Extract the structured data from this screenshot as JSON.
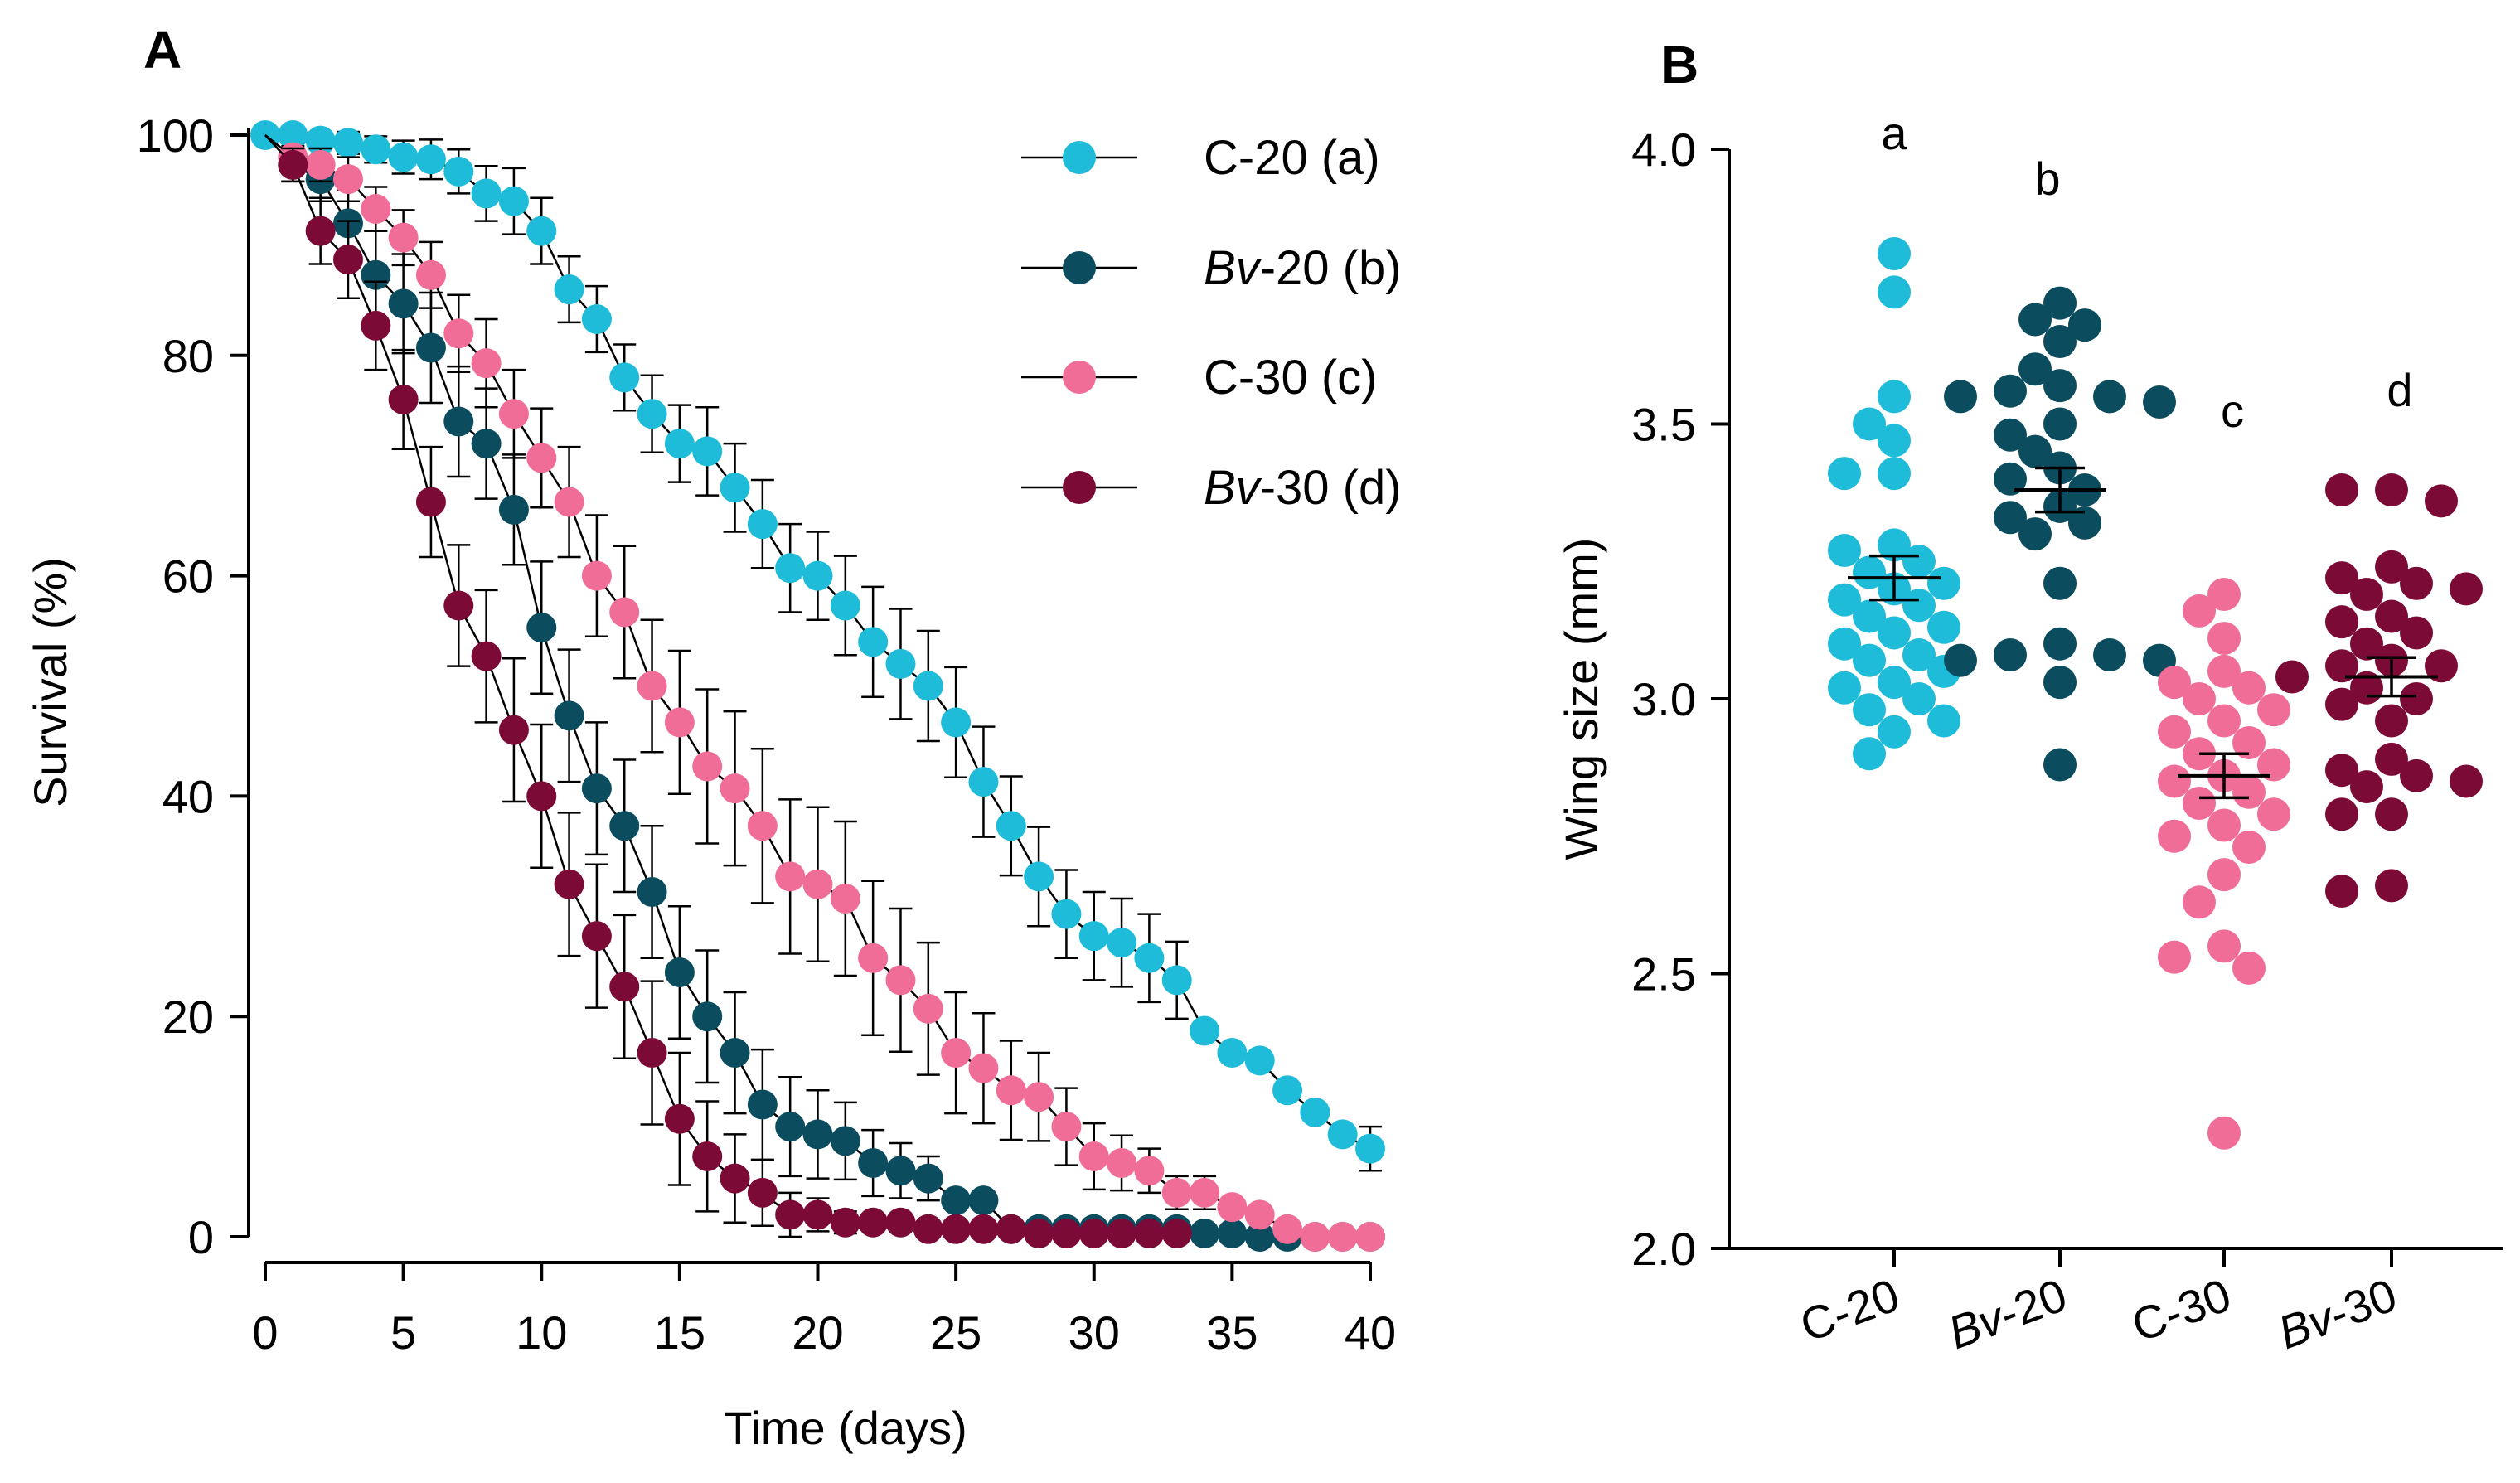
{
  "panel_a": {
    "label": "A",
    "xlabel": "Time (days)",
    "ylabel": "Survival (%)",
    "xticks": [
      "0",
      "5",
      "10",
      "15",
      "20",
      "25",
      "30",
      "35",
      "40"
    ],
    "yticks": [
      "0",
      "20",
      "40",
      "60",
      "80",
      "100"
    ]
  },
  "panel_b": {
    "label": "B",
    "ylabel": "Wing size (mm)",
    "yticks": [
      "2.0",
      "2.5",
      "3.0",
      "3.5",
      "4.0"
    ],
    "categories": [
      {
        "prefix": "C",
        "suffix": "-20"
      },
      {
        "prefix": "Bv",
        "suffix": "-20"
      },
      {
        "prefix": "C",
        "suffix": "-30"
      },
      {
        "prefix": "Bv",
        "suffix": "-30"
      }
    ],
    "letters": [
      "a",
      "b",
      "c",
      "d"
    ]
  },
  "legend": [
    {
      "prefix": "C",
      "rest": "-20 (a)",
      "italic": false
    },
    {
      "prefix": "Bv",
      "rest": "-20 (b)",
      "italic": true
    },
    {
      "prefix": "C",
      "rest": "-30 (c)",
      "italic": false
    },
    {
      "prefix": "Bv",
      "rest": "-30 (d)",
      "italic": true
    }
  ],
  "colors": {
    "C-20": "#1ebcd9",
    "Bv-20": "#0b4d5f",
    "C-30": "#f06d98",
    "Bv-30": "#7c0a37"
  },
  "chart_data": [
    {
      "type": "line",
      "title": "A",
      "xlabel": "Time (days)",
      "ylabel": "Survival (%)",
      "xlim": [
        0,
        40
      ],
      "ylim": [
        0,
        100
      ],
      "x": [
        0,
        1,
        2,
        3,
        4,
        5,
        6,
        7,
        8,
        9,
        10,
        11,
        12,
        13,
        14,
        15,
        16,
        17,
        18,
        19,
        20,
        21,
        22,
        23,
        24,
        25,
        26,
        27,
        28,
        29,
        30,
        31,
        32,
        33,
        34,
        35,
        36,
        37,
        38,
        39,
        40
      ],
      "series": [
        {
          "name": "C-20 (a)",
          "key": "C-20",
          "values": [
            100,
            100,
            99.5,
            99.3,
            98.7,
            98,
            97.8,
            96.7,
            94.7,
            94,
            91.3,
            86,
            83.3,
            78,
            74.7,
            72,
            71.3,
            68,
            64.7,
            60.7,
            60,
            57.3,
            54,
            52,
            50,
            46.7,
            41.3,
            37.3,
            32.7,
            29.3,
            27.3,
            26.7,
            25.3,
            23.3,
            18.7,
            16.7,
            16,
            13.3,
            11.3,
            9.3,
            8
          ],
          "err": [
            0,
            0.5,
            0.8,
            1,
            1.2,
            1.5,
            1.8,
            2,
            2.5,
            3,
            3,
            3,
            3,
            3,
            3.5,
            3.5,
            4,
            4,
            4,
            4,
            4,
            4.5,
            5,
            5,
            5,
            5,
            5,
            4.5,
            4.5,
            4,
            4,
            4,
            4,
            3.5,
            0,
            0,
            0,
            0,
            0,
            0,
            2
          ]
        },
        {
          "name": "Bv-20 (b)",
          "key": "Bv-20",
          "values": [
            null,
            97.3,
            96,
            92,
            87.3,
            84.7,
            80.7,
            74,
            72,
            66,
            55.3,
            47.3,
            40.7,
            37.3,
            31.3,
            24,
            20,
            16.7,
            12,
            10,
            9.3,
            8.7,
            6.7,
            6,
            5.3,
            3.3,
            3.3,
            0.7,
            0.7,
            0.7,
            0.7,
            0.7,
            0.7,
            0.7,
            0.3,
            0.3,
            0,
            0,
            0,
            0,
            0
          ],
          "err": [
            0,
            1.5,
            2,
            3,
            4,
            4.5,
            5,
            5,
            5,
            5,
            6,
            6,
            6,
            6,
            6,
            6,
            6,
            5.5,
            5,
            4.5,
            4,
            3.5,
            3,
            2.5,
            2,
            0,
            0,
            0,
            0,
            0,
            0,
            0,
            0,
            0,
            0,
            0,
            0,
            0,
            0,
            0,
            0
          ]
        },
        {
          "name": "C-30 (c)",
          "key": "C-30",
          "values": [
            null,
            98,
            97.3,
            96,
            93.3,
            90.7,
            87.3,
            82,
            79.3,
            74.7,
            70.7,
            66.7,
            60,
            56.7,
            50,
            46.7,
            42.7,
            40.7,
            37.3,
            32.7,
            32,
            30.7,
            25.3,
            23.3,
            20.7,
            16.7,
            15.3,
            13.3,
            12.7,
            10,
            7.3,
            6.7,
            6,
            4,
            4,
            2.7,
            2,
            0.7,
            0,
            0,
            0
          ],
          "err": [
            0,
            1,
            1.5,
            2,
            2,
            2.5,
            3,
            3.5,
            4,
            4,
            4.5,
            5,
            5.5,
            6,
            6,
            6.5,
            7,
            7,
            7,
            7,
            7,
            7,
            7,
            6.5,
            6,
            5.5,
            5,
            4.5,
            4,
            3.5,
            3,
            2.5,
            2,
            1.5,
            1.5,
            0,
            0,
            0,
            0,
            0,
            0
          ]
        },
        {
          "name": "Bv-30 (d)",
          "key": "Bv-30",
          "values": [
            null,
            97.3,
            91.3,
            88.7,
            82.7,
            76,
            66.7,
            57.3,
            52.7,
            46,
            40,
            32,
            27.3,
            22.7,
            16.7,
            10.7,
            7.3,
            5.3,
            4,
            2,
            2,
            1.3,
            1.3,
            1.3,
            0.7,
            0.7,
            0.7,
            0.7,
            0.3,
            0.3,
            0.3,
            0.3,
            0.3,
            0.3,
            null,
            null,
            null,
            null,
            null,
            null,
            null
          ],
          "err": [
            0,
            1.5,
            3,
            3.5,
            4,
            4.5,
            5,
            5.5,
            6,
            6.5,
            6.5,
            6.5,
            6.5,
            6.5,
            6.5,
            6,
            5,
            4,
            3,
            2,
            1.5,
            1,
            0.5,
            0.5,
            0,
            0,
            0,
            0,
            0,
            0,
            0,
            0,
            0,
            0,
            0,
            0,
            0,
            0,
            0,
            0,
            0
          ]
        }
      ]
    },
    {
      "type": "scatter",
      "title": "B",
      "ylabel": "Wing size (mm)",
      "ylim": [
        2.0,
        4.0
      ],
      "categories": [
        "C-20",
        "Bv-20",
        "C-30",
        "Bv-30"
      ],
      "letters": [
        "a",
        "b",
        "c",
        "d"
      ],
      "groups": [
        {
          "name": "C-20",
          "mean": 3.22,
          "sem": 0.04,
          "values": [
            3.81,
            3.74,
            3.55,
            3.5,
            3.47,
            3.41,
            3.41,
            3.28,
            3.27,
            3.25,
            3.23,
            3.21,
            3.2,
            3.18,
            3.17,
            3.15,
            3.13,
            3.12,
            3.1,
            3.08,
            3.07,
            3.05,
            3.03,
            3.02,
            3.0,
            2.98,
            2.96,
            2.94,
            2.9
          ]
        },
        {
          "name": "Bv-20",
          "mean": 3.38,
          "sem": 0.04,
          "values": [
            3.72,
            3.69,
            3.68,
            3.65,
            3.6,
            3.57,
            3.56,
            3.55,
            3.55,
            3.54,
            3.5,
            3.48,
            3.45,
            3.42,
            3.4,
            3.38,
            3.35,
            3.33,
            3.32,
            3.3,
            3.21,
            3.1,
            3.08,
            3.08,
            3.07,
            3.07,
            3.03,
            2.88
          ]
        },
        {
          "name": "C-30",
          "mean": 2.86,
          "sem": 0.04,
          "values": [
            3.19,
            3.16,
            3.11,
            3.05,
            3.03,
            3.02,
            3.0,
            2.98,
            2.96,
            2.94,
            2.92,
            2.9,
            2.88,
            2.86,
            2.85,
            2.83,
            2.81,
            2.79,
            2.77,
            2.75,
            2.73,
            2.68,
            2.63,
            2.55,
            2.53,
            2.51,
            2.21
          ]
        },
        {
          "name": "Bv-30",
          "mean": 3.04,
          "sem": 0.035,
          "values": [
            3.38,
            3.38,
            3.36,
            3.24,
            3.22,
            3.21,
            3.2,
            3.19,
            3.15,
            3.14,
            3.12,
            3.1,
            3.07,
            3.06,
            3.06,
            3.04,
            3.02,
            3.0,
            2.99,
            2.96,
            2.89,
            2.87,
            2.86,
            2.85,
            2.84,
            2.79,
            2.79,
            2.66,
            2.65
          ]
        }
      ]
    }
  ]
}
